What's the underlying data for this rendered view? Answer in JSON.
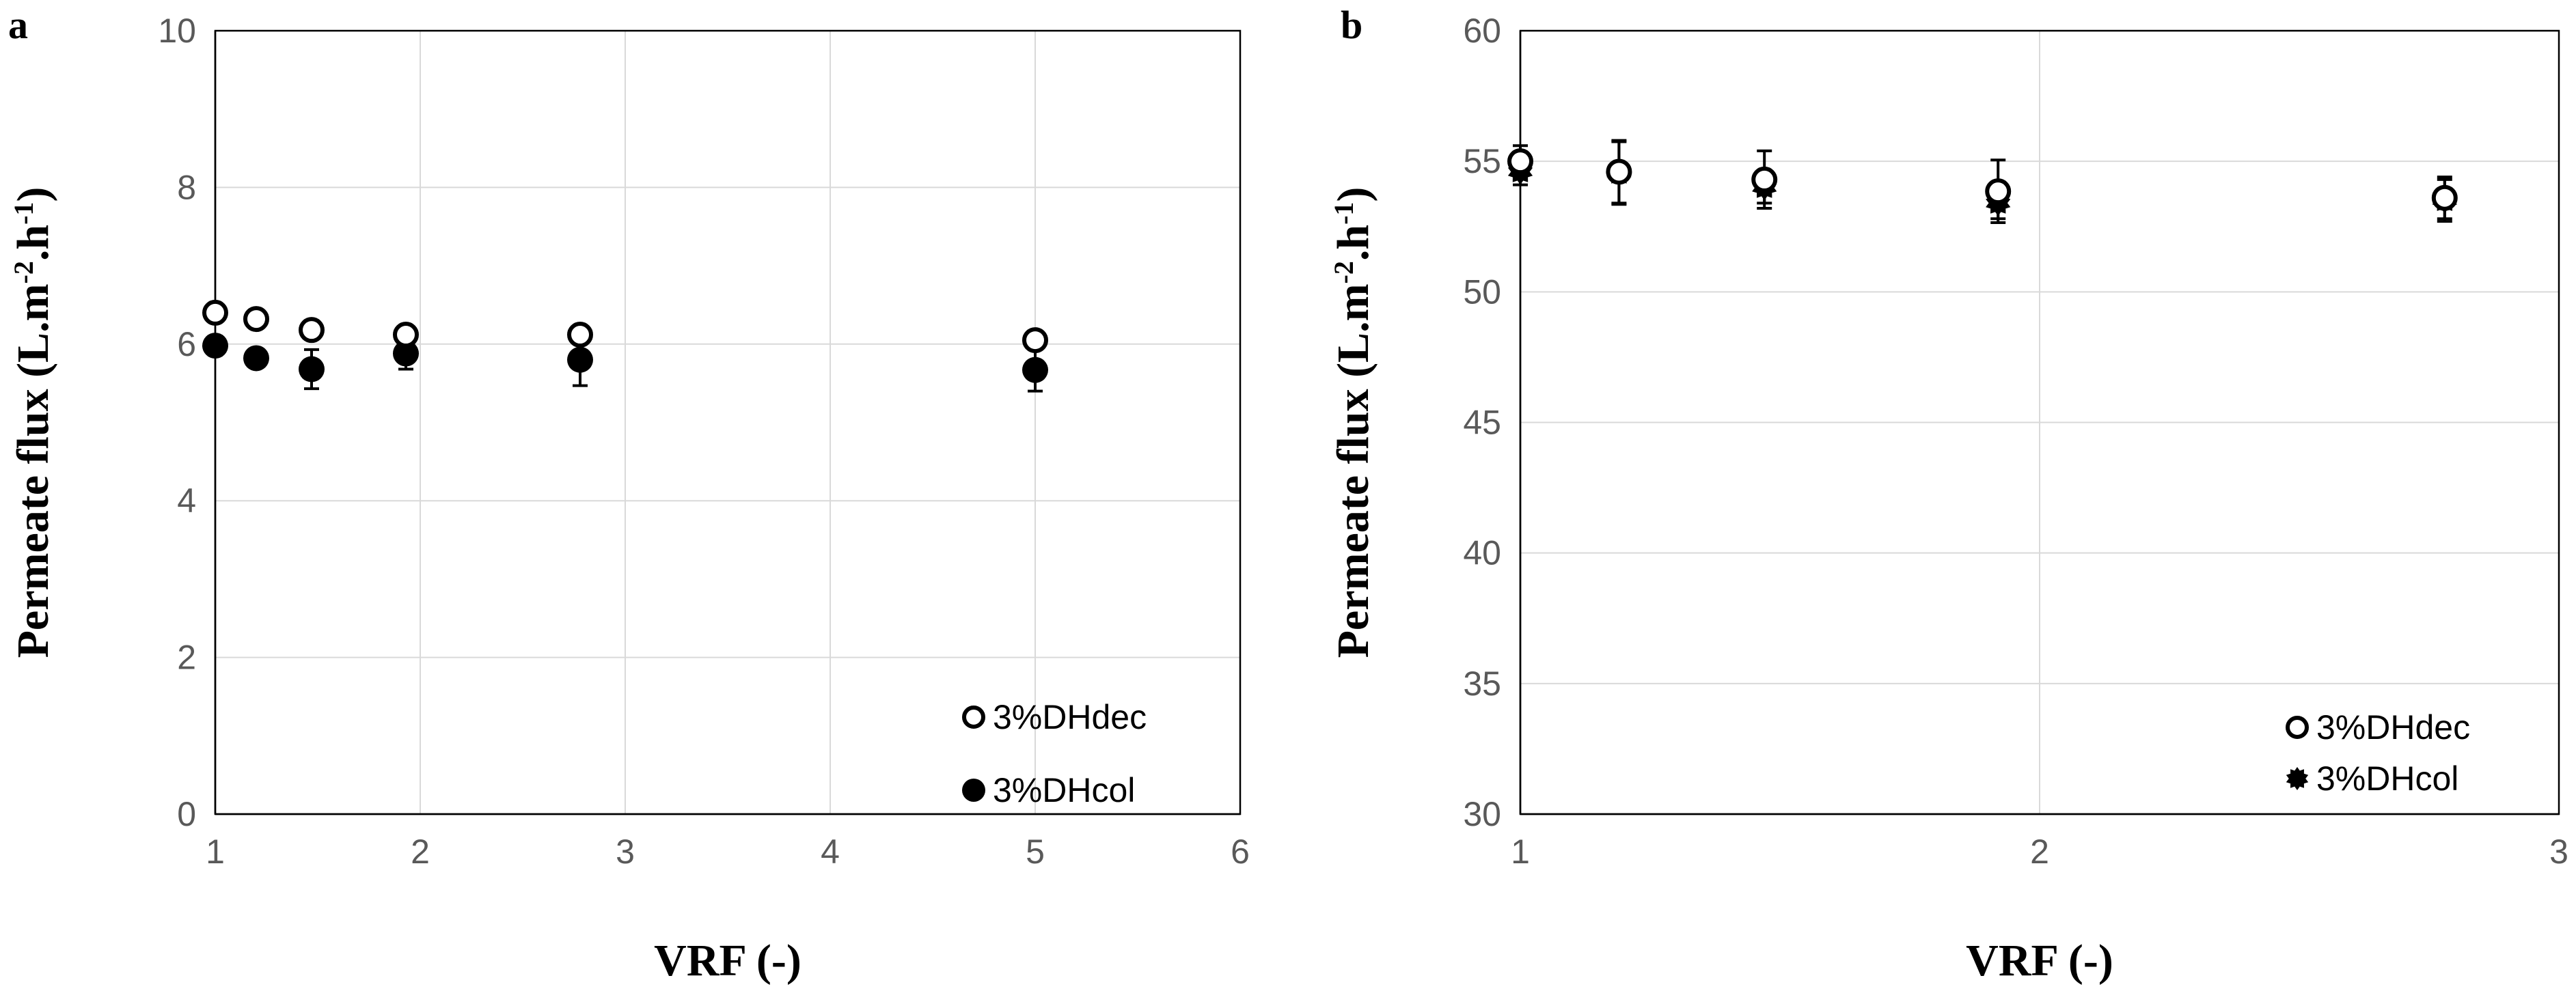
{
  "chart_data": [
    {
      "panel": "a",
      "type": "scatter",
      "xlabel": "VRF (-)",
      "ylabel": "Permeate flux (L.m-2.h-1)",
      "ylabel_parts": {
        "main": "Permeate flux (L.m",
        "sup1": "-2",
        "mid": ".h",
        "sup2": "-1",
        "end": ")"
      },
      "xlim": [
        1,
        6
      ],
      "ylim": [
        0,
        10
      ],
      "x_ticks": [
        1,
        2,
        3,
        4,
        5,
        6
      ],
      "y_ticks": [
        0,
        2,
        4,
        6,
        8,
        10
      ],
      "grid": true,
      "legend_position": "bottom-right",
      "series": [
        {
          "name": "3%DHdec",
          "marker": "open-circle",
          "x": [
            1.0,
            1.2,
            1.47,
            1.93,
            2.78,
            5.0
          ],
          "y": [
            6.4,
            6.32,
            6.18,
            6.12,
            6.12,
            6.05
          ],
          "err": [
            0,
            0,
            0,
            0,
            0,
            0
          ]
        },
        {
          "name": "3%DHcol",
          "marker": "filled-circle",
          "x": [
            1.0,
            1.2,
            1.47,
            1.93,
            2.78,
            5.0
          ],
          "y": [
            5.98,
            5.82,
            5.68,
            5.88,
            5.8,
            5.67
          ],
          "err": [
            0.12,
            0.1,
            0.25,
            0.2,
            0.33,
            0.27
          ]
        }
      ]
    },
    {
      "panel": "b",
      "type": "scatter",
      "xlabel": "VRF (-)",
      "ylabel": "Permeate flux (L.m-2.h-1)",
      "ylabel_parts": {
        "main": "Permeate flux (L.m",
        "sup1": "-2",
        "mid": ".h",
        "sup2": "-1",
        "end": ")"
      },
      "xlim": [
        1,
        3
      ],
      "ylim": [
        30,
        60
      ],
      "x_ticks": [
        1,
        2,
        3
      ],
      "y_ticks": [
        30,
        35,
        40,
        45,
        50,
        55,
        60
      ],
      "grid": true,
      "legend_position": "bottom-right",
      "series": [
        {
          "name": "3%DHdec",
          "marker": "open-circle",
          "x": [
            1.0,
            1.19,
            1.47,
            1.92,
            2.78
          ],
          "y": [
            55.0,
            54.6,
            54.3,
            53.85,
            53.6
          ],
          "err": [
            0.6,
            1.2,
            1.1,
            1.2,
            0.8
          ]
        },
        {
          "name": "3%DHcol",
          "marker": "filled-star",
          "x": [
            1.0,
            1.19,
            1.47,
            1.92,
            2.78
          ],
          "y": [
            54.6,
            54.55,
            54.0,
            53.4,
            53.5
          ],
          "err": [
            0.5,
            1.2,
            0.6,
            0.6,
            0.8
          ]
        }
      ]
    }
  ]
}
